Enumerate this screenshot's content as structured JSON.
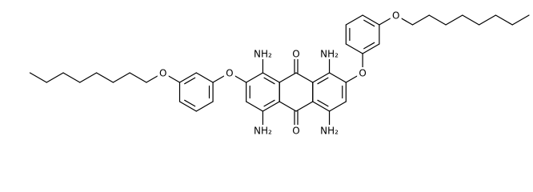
{
  "labels": [
    "NH₂",
    "O",
    "NH₂",
    "O",
    "O",
    "NH₂",
    "O",
    "NH₂",
    "O",
    "O"
  ]
}
